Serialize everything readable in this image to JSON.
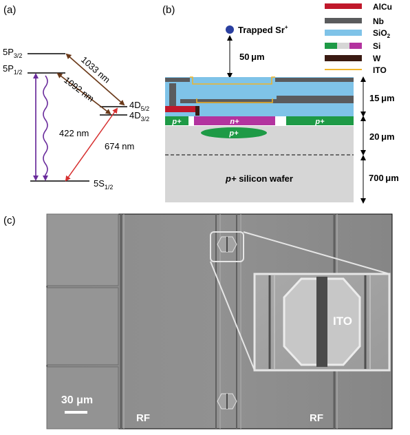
{
  "panels": {
    "a": {
      "label": "(a)"
    },
    "b": {
      "label": "(b)"
    },
    "c": {
      "label": "(c)"
    }
  },
  "energy_levels": {
    "p32": {
      "base": "5P",
      "sub": "3/2"
    },
    "p12": {
      "base": "5P",
      "sub": "1/2"
    },
    "d52": {
      "base": "4D",
      "sub": "5/2"
    },
    "d32": {
      "base": "4D",
      "sub": "3/2"
    },
    "s12": {
      "base": "5S",
      "sub": "1/2"
    }
  },
  "transitions": {
    "t1033": "1033 nm",
    "t1092": "1092 nm",
    "t422": "422 nm",
    "t674": "674 nm"
  },
  "cross_section": {
    "trapped_ion": {
      "base": "Trapped Sr",
      "sup": "+"
    },
    "height_label": "50 μm",
    "dimensions": [
      "15 μm",
      "20 μm",
      "700 μm"
    ],
    "doping": {
      "p_plus": "p+",
      "n_plus": "n+"
    },
    "wafer_label": {
      "italic": "p+",
      "rest": " silicon wafer"
    }
  },
  "legend": [
    {
      "label": "AlCu",
      "color": "#c0182b"
    },
    {
      "label": "Nb",
      "color": "#5a5b5d"
    },
    {
      "label": "SiO2",
      "base": "SiO",
      "sub": "2",
      "color": "#7fc3e8"
    },
    {
      "label": "Si",
      "color": "#1e9a46"
    },
    {
      "label": "W",
      "color": "#3a1a12"
    },
    {
      "label": "ITO",
      "color": "#f0b429"
    }
  ],
  "micrograph": {
    "scale_bar": "30 μm",
    "electrode_left": "RF",
    "electrode_right": "RF",
    "inset_label": "ITO"
  },
  "colors": {
    "purple": "#6a2c9c",
    "brown": "#6b3a1a",
    "red": "#d62f2f",
    "magenta": "#b3339f",
    "sem_bg": "#8a8a8a"
  }
}
